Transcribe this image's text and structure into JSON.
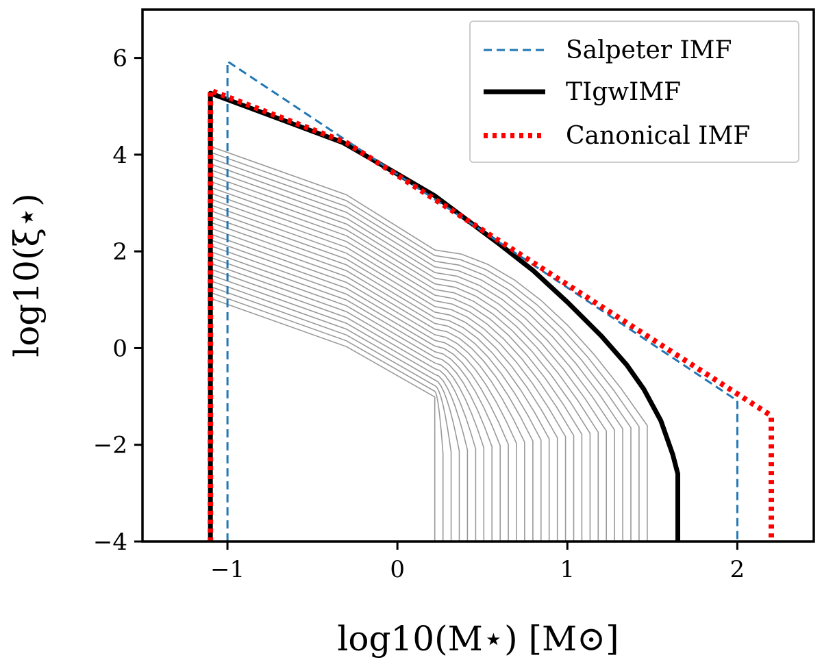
{
  "chart_data": {
    "type": "line",
    "xlabel": "log10(M⋆) [M⊙]",
    "ylabel": "log10(ξ⋆)",
    "xlim": [
      -1.5,
      2.45
    ],
    "ylim": [
      -4,
      7
    ],
    "xticks": [
      -1,
      0,
      1,
      2
    ],
    "yticks": [
      -4,
      -2,
      0,
      2,
      4,
      6
    ],
    "x_tick_labels": [
      "−1",
      "0",
      "1",
      "2"
    ],
    "y_tick_labels": [
      "−4",
      "−2",
      "0",
      "2",
      "4",
      "6"
    ],
    "grid": false,
    "legend_position": "top-right",
    "series": [
      {
        "name": "Salpeter IMF",
        "color": "#1f77b4",
        "style": "dashed",
        "x": [
          -1.0,
          -1.0,
          2.0,
          2.0
        ],
        "y": [
          -4.0,
          5.93,
          -1.09,
          -4.0
        ]
      },
      {
        "name": "TIgwIMF",
        "color": "#000000",
        "style": "solid",
        "x": [
          -1.1,
          -1.1,
          -0.32,
          0.0,
          0.22,
          0.6,
          0.8,
          1.0,
          1.2,
          1.35,
          1.45,
          1.55,
          1.62,
          1.65,
          1.65
        ],
        "y": [
          -4.0,
          5.27,
          4.25,
          3.6,
          3.15,
          2.15,
          1.6,
          0.95,
          0.25,
          -0.35,
          -0.85,
          -1.5,
          -2.2,
          -2.6,
          -4.0
        ]
      },
      {
        "name": "Canonical IMF",
        "color": "#ff0000",
        "style": "dotted",
        "x": [
          -1.1,
          -1.1,
          -0.3,
          2.2,
          2.2
        ],
        "y": [
          -4.0,
          5.33,
          4.25,
          -1.4,
          -4.0
        ]
      }
    ],
    "background_family": {
      "color": "#999999",
      "count": 27,
      "knee_x": [
        -1.1,
        -0.3,
        0.22,
        0.22
      ],
      "top_y": [
        4.17,
        3.17,
        2.03
      ],
      "bottom_y": [
        1.03,
        0.03,
        -1.01
      ],
      "tail_end_x_first": 0.22,
      "tail_end_x_last": 1.47
    }
  }
}
